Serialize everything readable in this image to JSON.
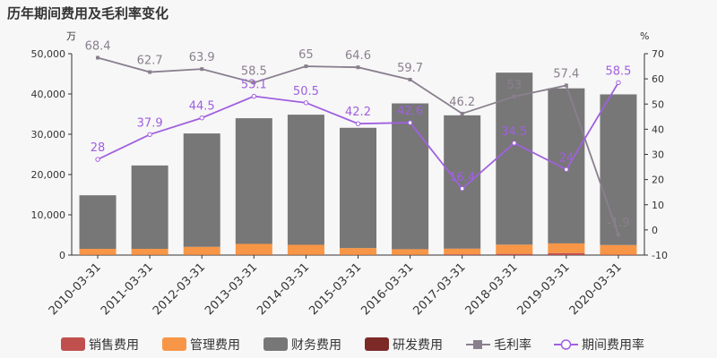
{
  "chart_data": {
    "type": "bar",
    "title": "历年期间费用及毛利率变化",
    "left_unit": "万",
    "right_unit": "%",
    "categories": [
      "2010-03-31",
      "2011-03-31",
      "2012-03-31",
      "2013-03-31",
      "2014-03-31",
      "2015-03-31",
      "2016-03-31",
      "2017-03-31",
      "2018-03-31",
      "2019-03-31",
      "2020-03-31"
    ],
    "y_left": {
      "min": 0,
      "max": 50000,
      "ticks": [
        0,
        10000,
        20000,
        30000,
        40000,
        50000
      ],
      "tick_labels": [
        "0",
        "10,000",
        "20,000",
        "30,000",
        "40,000",
        "50,000"
      ]
    },
    "y_right": {
      "min": -10,
      "max": 70,
      "ticks": [
        -10,
        0,
        10,
        20,
        30,
        40,
        50,
        60,
        70
      ],
      "tick_labels": [
        "-10",
        "0",
        "10",
        "20",
        "30",
        "40",
        "50",
        "60",
        "70"
      ]
    },
    "stacked_series": [
      {
        "name": "销售费用",
        "color": "#c0504d",
        "values": [
          50,
          50,
          50,
          80,
          60,
          50,
          60,
          200,
          300,
          500,
          100
        ]
      },
      {
        "name": "管理费用",
        "color": "#f79646",
        "values": [
          1500,
          1500,
          2000,
          2700,
          2500,
          1700,
          1400,
          1400,
          2300,
          2400,
          2400
        ]
      },
      {
        "name": "财务费用",
        "color": "#777777",
        "values": [
          13300,
          20700,
          28150,
          31200,
          32300,
          29850,
          36200,
          33100,
          42700,
          38500,
          37400
        ]
      },
      {
        "name": "研发费用",
        "color": "#7b2a28",
        "values": [
          0,
          0,
          0,
          0,
          0,
          0,
          0,
          0,
          0,
          0,
          0
        ]
      }
    ],
    "line_series": [
      {
        "name": "毛利率",
        "color": "#8a7f8e",
        "axis": "right",
        "values": [
          68.4,
          62.7,
          63.9,
          58.5,
          65,
          64.6,
          59.7,
          46.2,
          53,
          57.4,
          -1.9
        ],
        "labels": [
          "68.4",
          "62.7",
          "63.9",
          "58.5",
          "65",
          "64.6",
          "59.7",
          "46.2",
          "53",
          "57.4",
          "-1.9"
        ]
      },
      {
        "name": "期间费用率",
        "color": "#a060e0",
        "axis": "right",
        "values": [
          28,
          37.9,
          44.5,
          53.1,
          50.5,
          42.2,
          42.6,
          16.4,
          34.5,
          24,
          58.5
        ],
        "labels": [
          "28",
          "37.9",
          "44.5",
          "53.1",
          "50.5",
          "42.2",
          "42.6",
          "16.4",
          "34.5",
          "24",
          "58.5"
        ]
      }
    ],
    "legend_position": "bottom"
  }
}
